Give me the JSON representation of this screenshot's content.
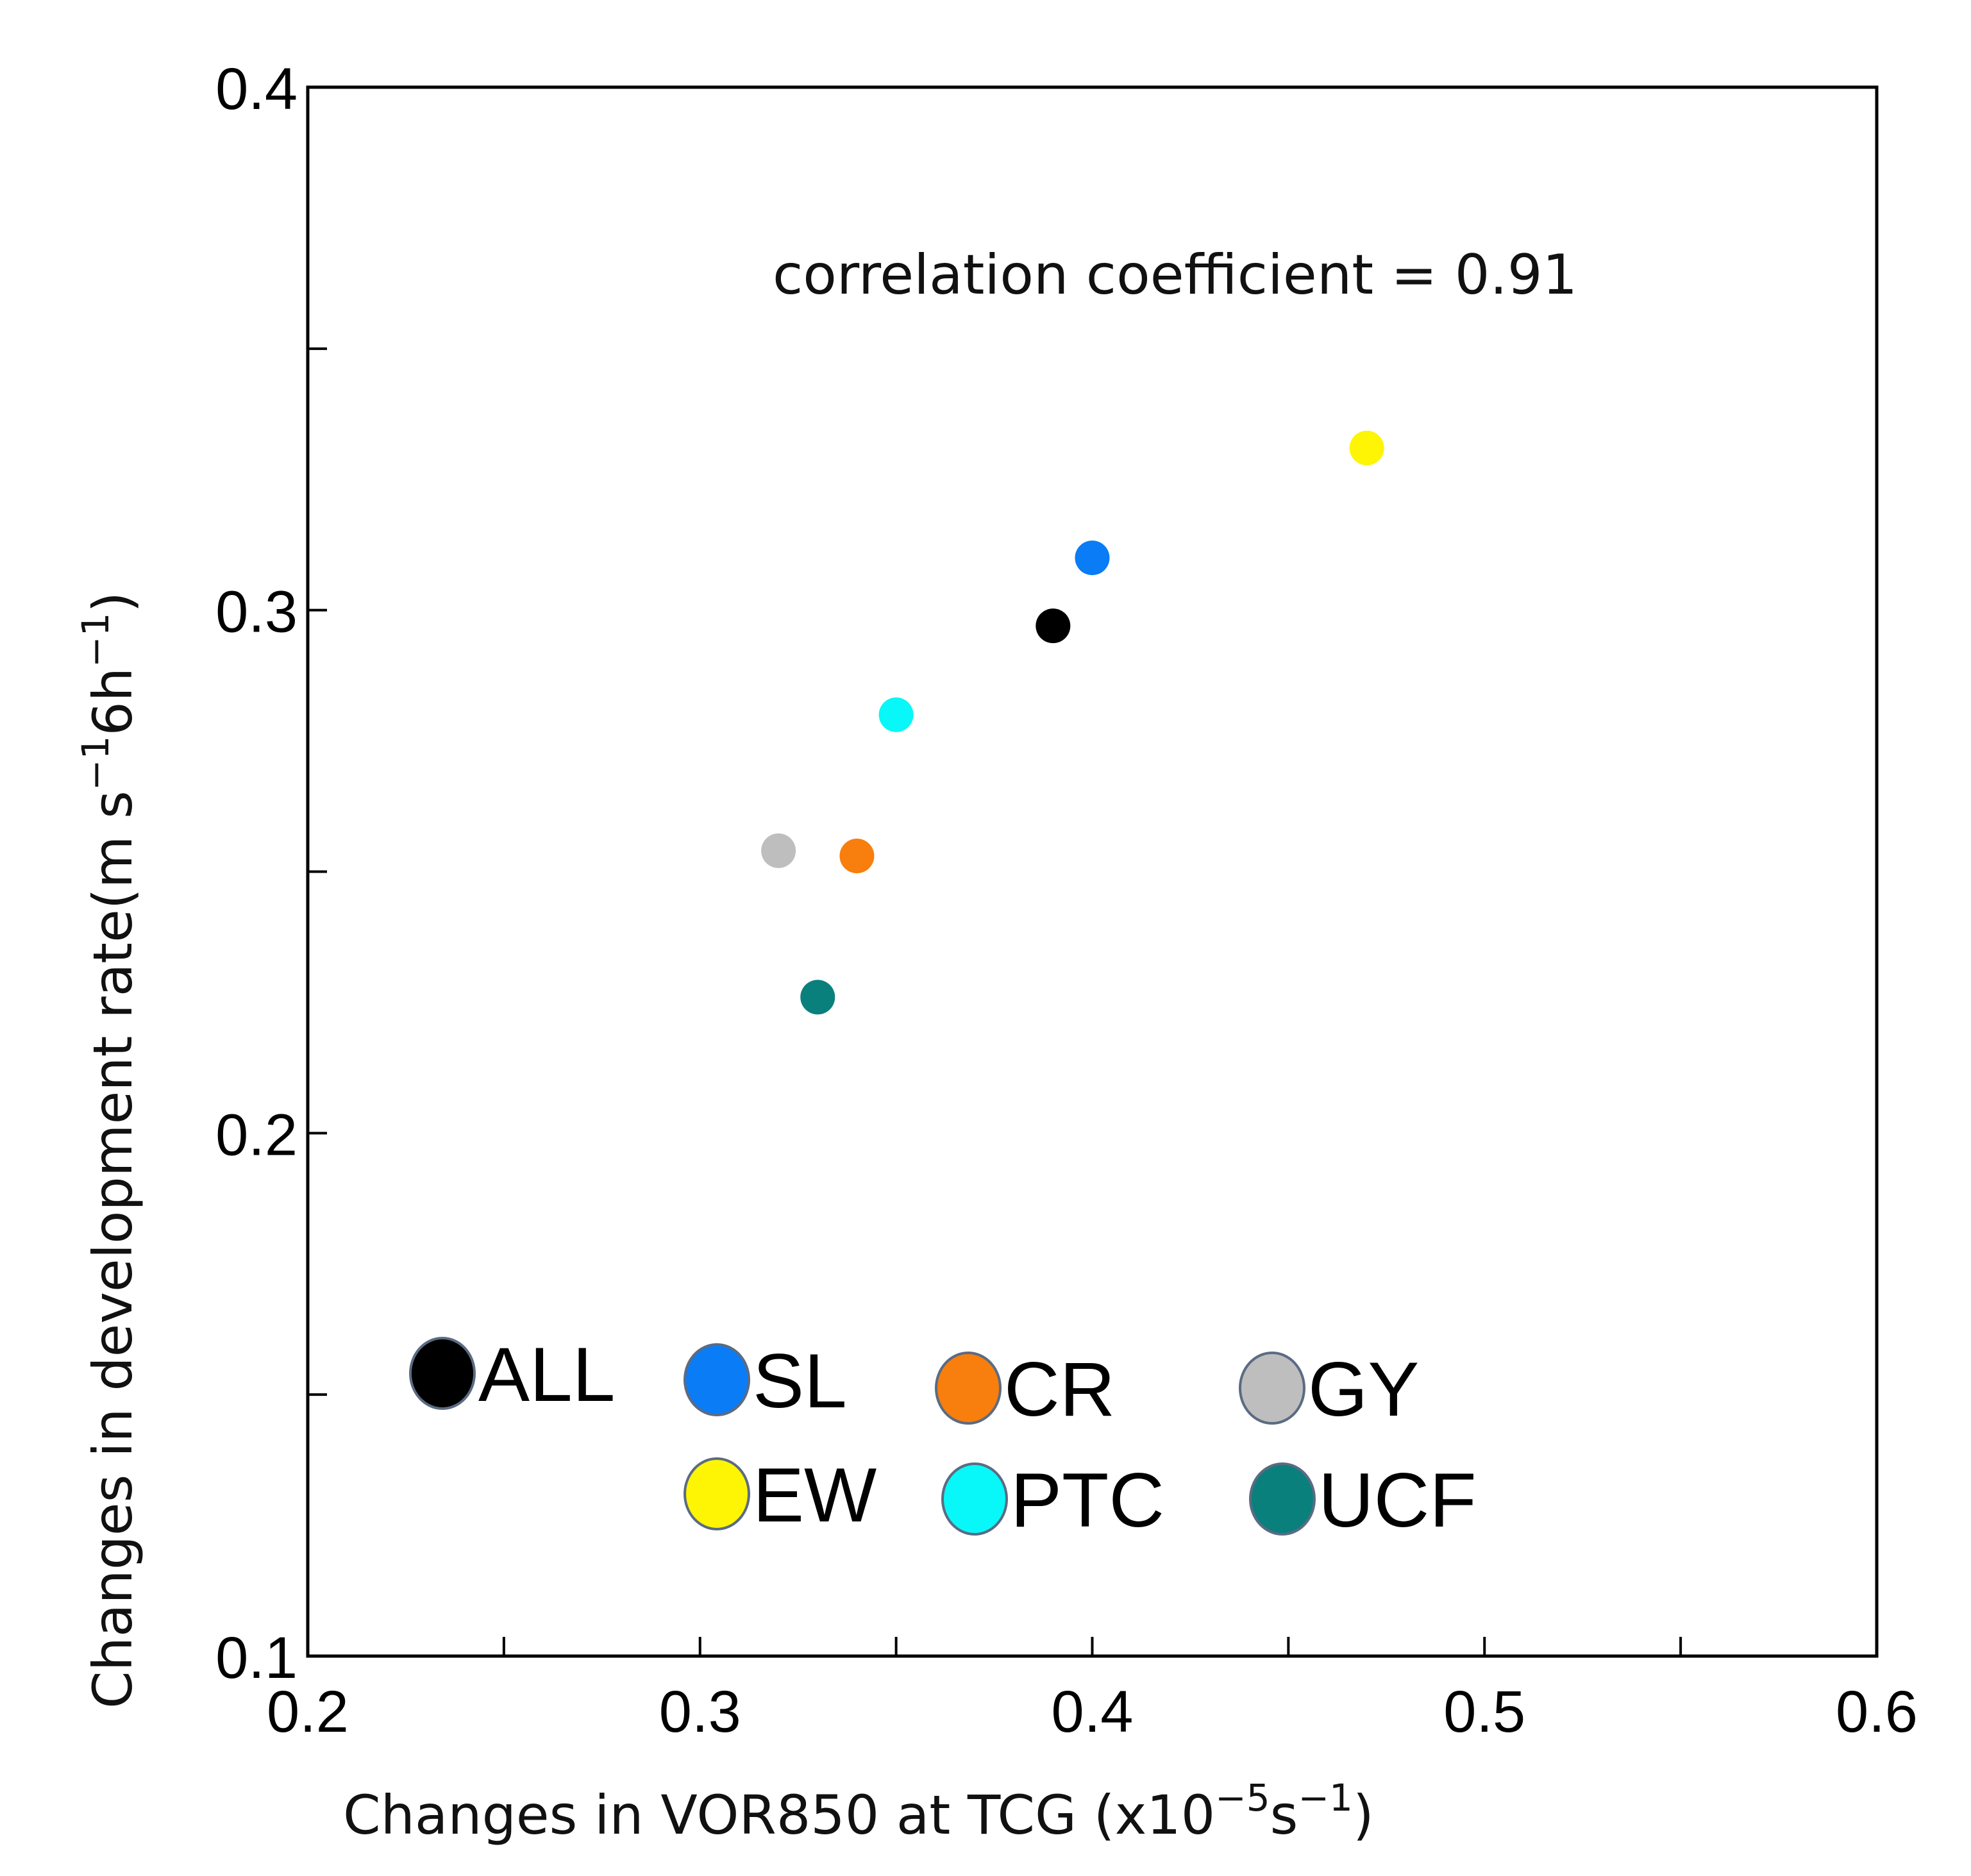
{
  "chart_data": {
    "type": "scatter",
    "xlabel_text": "Changes in VOR850 at TCG (x10",
    "xlabel_sup1": "−5",
    "xlabel_mid": "s",
    "xlabel_sup2": "−1",
    "xlabel_end": ")",
    "ylabel_text": "Changes in development rate(m s",
    "ylabel_sup1": "−1",
    "ylabel_mid": "6h",
    "ylabel_sup2": "−1",
    "ylabel_end": ")",
    "xlim": [
      0.2,
      0.6
    ],
    "ylim": [
      0.1,
      0.4
    ],
    "x_ticks": [
      0.2,
      0.3,
      0.4,
      0.5,
      0.6
    ],
    "x_tick_labels": [
      "0.2",
      "0.3",
      "0.4",
      "0.5",
      "0.6"
    ],
    "x_minor_ticks": [
      0.25,
      0.35,
      0.45,
      0.55
    ],
    "y_ticks": [
      0.1,
      0.2,
      0.3,
      0.4
    ],
    "y_tick_labels": [
      "0.1",
      "0.2",
      "0.3",
      "0.4"
    ],
    "y_minor_ticks": [
      0.15,
      0.25,
      0.35
    ],
    "annotation": "correlation coefficient = 0.91",
    "points": [
      {
        "name": "ALL",
        "x": 0.39,
        "y": 0.297,
        "color": "#000000"
      },
      {
        "name": "SL",
        "x": 0.4,
        "y": 0.31,
        "color": "#0a7cf5"
      },
      {
        "name": "CR",
        "x": 0.34,
        "y": 0.253,
        "color": "#f87e0d"
      },
      {
        "name": "GY",
        "x": 0.32,
        "y": 0.254,
        "color": "#bebebe"
      },
      {
        "name": "EW",
        "x": 0.47,
        "y": 0.331,
        "color": "#fdf504"
      },
      {
        "name": "PTC",
        "x": 0.35,
        "y": 0.28,
        "color": "#08f7f8"
      },
      {
        "name": "UCF",
        "x": 0.33,
        "y": 0.226,
        "color": "#0a807d"
      }
    ],
    "legend": [
      {
        "label": "ALL",
        "color": "#000000"
      },
      {
        "label": "SL",
        "color": "#0a7cf5"
      },
      {
        "label": "CR",
        "color": "#f87e0d"
      },
      {
        "label": "GY",
        "color": "#bebebe"
      },
      {
        "label": "EW",
        "color": "#fdf504"
      },
      {
        "label": "PTC",
        "color": "#08f7f8"
      },
      {
        "label": "UCF",
        "color": "#0a807d"
      }
    ]
  }
}
